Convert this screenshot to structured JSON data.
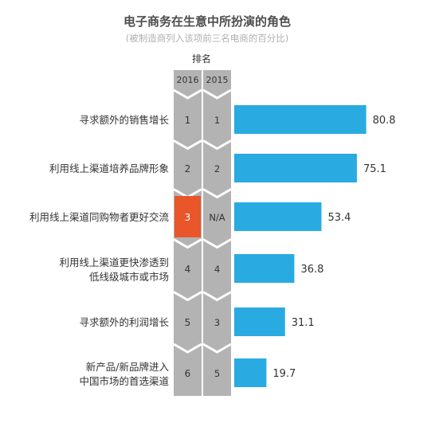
{
  "chart_data": {
    "type": "bar",
    "orientation": "horizontal",
    "title": "电子商务在生意中所扮演的角色",
    "subtitle": "(被制造商列入该项前三名电商的百分比)",
    "rank_header": "排名",
    "rank_columns": [
      "2016",
      "2015"
    ],
    "categories": [
      "寻求额外的销售增长",
      "利用线上渠道培养品牌形象",
      "利用线上渠道同购物者更好交流",
      "利用线上渠道更快渗透到低线级城市或市场",
      "寻求额外的利润增长",
      "新产品/新品牌进入中国市场的首选渠道"
    ],
    "category_lines": [
      [
        "寻求额外的销售增长"
      ],
      [
        "利用线上渠道培养品牌形象"
      ],
      [
        "利用线上渠道同购物者更好交流"
      ],
      [
        "利用线上渠道更快渗透到",
        "低线级城市或市场"
      ],
      [
        "寻求额外的利润增长"
      ],
      [
        "新产品/新品牌进入",
        "中国市场的首选渠道"
      ]
    ],
    "rank_2016": [
      "1",
      "2",
      "3",
      "4",
      "5",
      "6"
    ],
    "rank_2015": [
      "1",
      "2",
      "N/A",
      "4",
      "3",
      "5"
    ],
    "values": [
      80.8,
      75.1,
      53.4,
      36.8,
      31.1,
      19.7
    ],
    "value_labels": [
      "80.8",
      "75.1",
      "53.4",
      "36.8",
      "31.1",
      "19.7"
    ],
    "highlight_index": 2,
    "xlim": [
      0,
      100
    ],
    "grid": false,
    "colors": {
      "bar": "#29ABE2",
      "rank_column": "#B3B3B3",
      "rank_column_edge": "#9E9E9E",
      "highlight": "#E8562A",
      "title": "#4D4D4D",
      "subtitle": "#B0B0B0",
      "text": "#333333"
    }
  }
}
